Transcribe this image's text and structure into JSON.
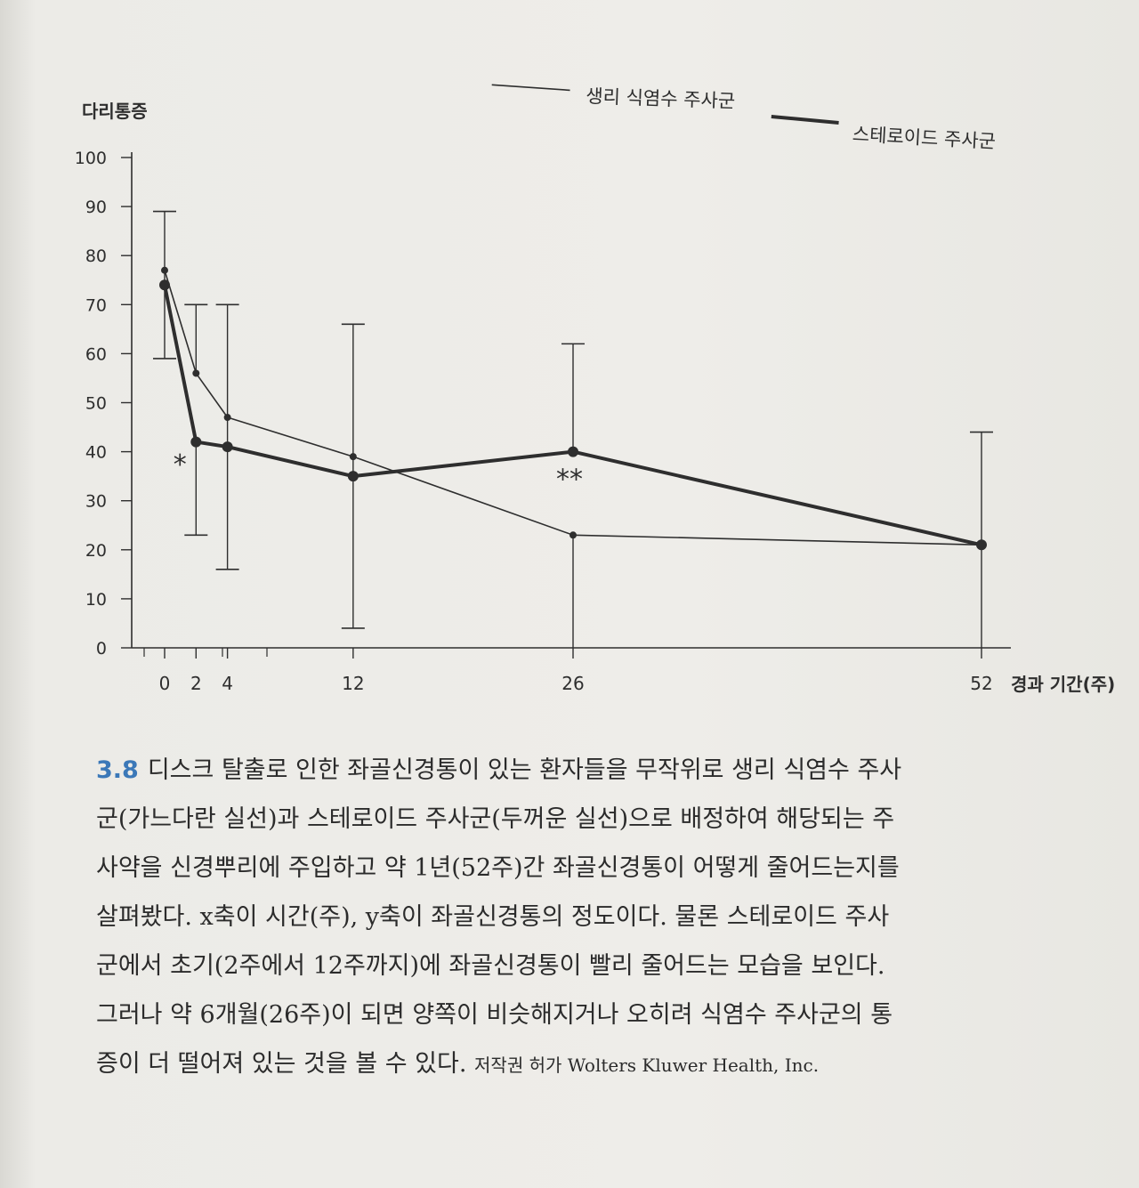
{
  "chart_data": {
    "type": "line",
    "ylabel": "다리통증",
    "xlabel": "경과 기간(주)",
    "x": [
      0,
      2,
      4,
      12,
      26,
      52
    ],
    "xticks": [
      "0",
      "2",
      "4",
      "12",
      "26",
      "52"
    ],
    "yticks": [
      "0",
      "10",
      "20",
      "30",
      "40",
      "50",
      "60",
      "70",
      "80",
      "90",
      "100"
    ],
    "xlim": [
      -6,
      58
    ],
    "ylim": [
      0,
      100
    ],
    "grid": false,
    "legend_position": "top-right",
    "series": [
      {
        "name": "생리 식염수 주사군",
        "style": "thin",
        "values": [
          77,
          56,
          47,
          39,
          23,
          21
        ],
        "error_bars": [
          [
            59,
            89
          ],
          [
            null,
            70
          ],
          [
            16,
            70
          ],
          [
            4,
            66
          ],
          [
            0,
            null
          ],
          [
            null,
            null
          ]
        ]
      },
      {
        "name": "스테로이드 주사군",
        "style": "thick",
        "values": [
          74,
          42,
          41,
          35,
          40,
          21
        ],
        "error_bars": [
          [
            null,
            null
          ],
          [
            23,
            null
          ],
          [
            null,
            null
          ],
          [
            null,
            null
          ],
          [
            null,
            62
          ],
          [
            0,
            44
          ]
        ]
      }
    ],
    "annotations": [
      {
        "text": "*",
        "x": 2,
        "y": 37
      },
      {
        "text": "**",
        "x": 26,
        "y": 34
      }
    ]
  },
  "caption": {
    "figure_number": "3.8",
    "lines": [
      "디스크 탈출로 인한 좌골신경통이 있는 환자들을 무작위로 생리 식염수 주사",
      "군(가느다란 실선)과 스테로이드 주사군(두꺼운 실선)으로 배정하여 해당되는 주",
      "사약을 신경뿌리에 주입하고 약 1년(52주)간 좌골신경통이 어떻게 줄어드는지를",
      "살펴봤다. x축이 시간(주), y축이 좌골신경통의 정도이다. 물론 스테로이드 주사",
      "군에서 초기(2주에서 12주까지)에 좌골신경통이 빨리 줄어드는 모습을 보인다.",
      "그러나 약 6개월(26주)이 되면 양쪽이 비슷해지거나 오히려 식염수 주사군의 통"
    ],
    "last_line": "증이 더 떨어져 있는 것을 볼 수 있다.",
    "credit": "저작권 허가 Wolters Kluwer Health, Inc."
  },
  "colors": {
    "line": "#2e2e2e",
    "figure_number": "#3b78b8",
    "paper": "#ecebe7"
  }
}
